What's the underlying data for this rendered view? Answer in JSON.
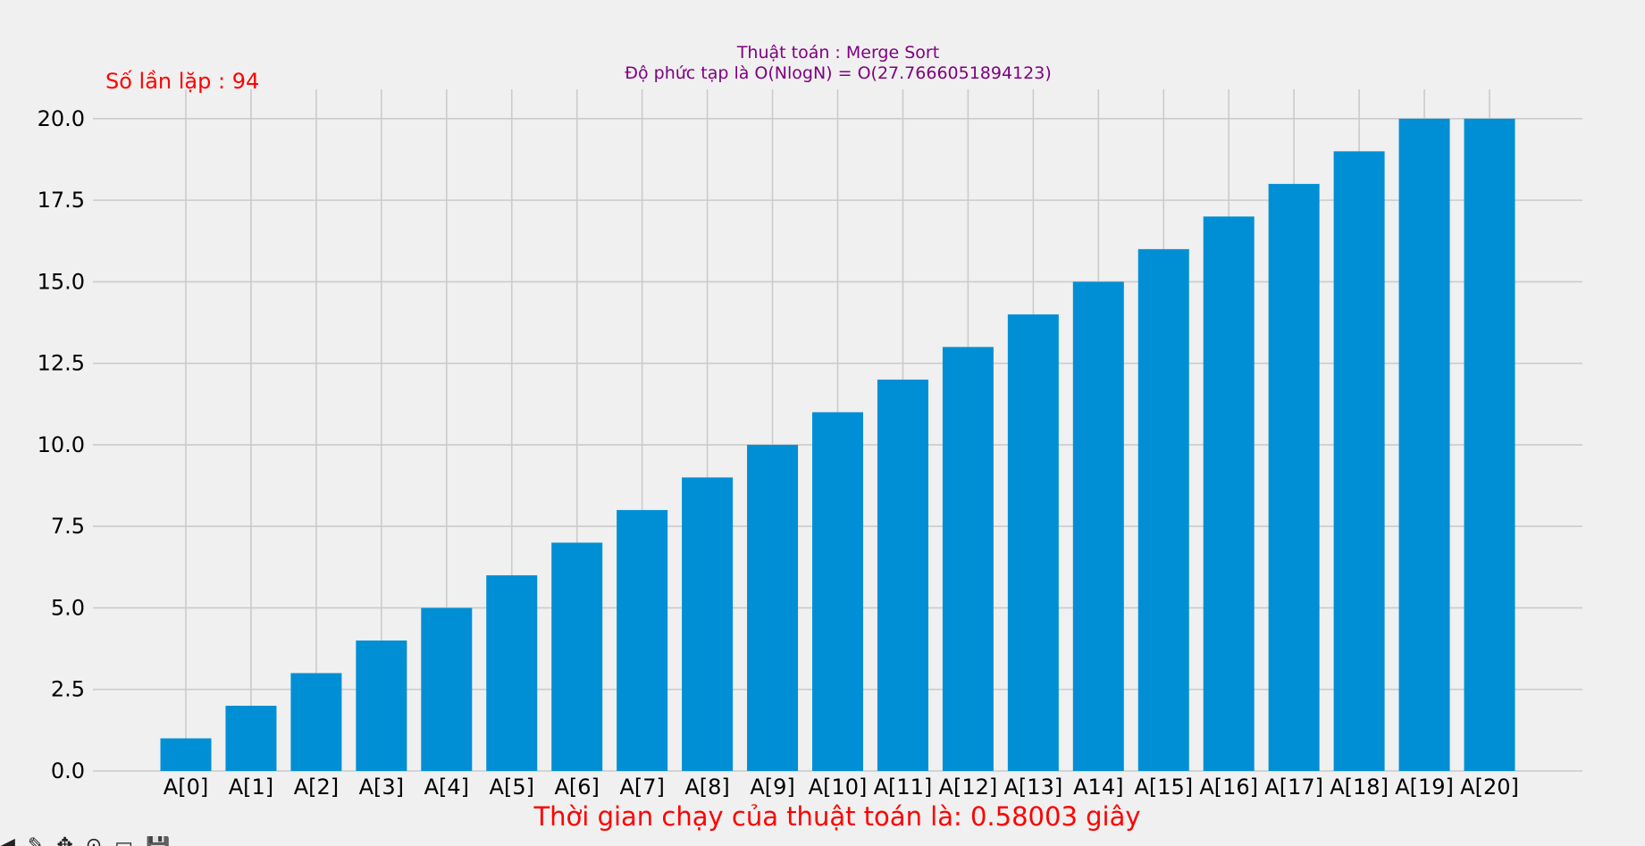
{
  "chart_data": {
    "type": "bar",
    "title_lines": [
      "Thuật toán : Merge Sort",
      "Độ phức tạp là O(NlogN) = O(27.7666051894123)"
    ],
    "annotation_top_left": "Số lần lặp : 94",
    "annotation_bottom": "Thời gian chạy của thuật toán là: 0.58003 giây",
    "categories": [
      "A[0]",
      "A[1]",
      "A[2]",
      "A[3]",
      "A[4]",
      "A[5]",
      "A[6]",
      "A[7]",
      "A[8]",
      "A[9]",
      "A[10]",
      "A[11]",
      "A[12]",
      "A[13]",
      "A14]",
      "A[15]",
      "A[16]",
      "A[17]",
      "A[18]",
      "A[19]",
      "A[20]"
    ],
    "values": [
      1,
      2,
      3,
      4,
      5,
      6,
      7,
      8,
      9,
      10,
      11,
      12,
      13,
      14,
      15,
      16,
      17,
      18,
      19,
      20,
      20
    ],
    "ylim": [
      0,
      20.9
    ],
    "yticks": [
      0,
      2.5,
      5,
      7.5,
      10,
      12.5,
      15,
      17.5,
      20
    ],
    "ytick_labels": [
      "0.0",
      "2.5",
      "5.0",
      "7.5",
      "10.0",
      "12.5",
      "15.0",
      "17.5",
      "20.0"
    ],
    "bar_color": "#008fd5",
    "grid": true,
    "xlabel": "",
    "ylabel": ""
  },
  "toolbar": {
    "icons": [
      "home-icon",
      "back-icon",
      "forward-icon",
      "pan-icon",
      "zoom-icon",
      "configure-icon",
      "save-icon"
    ]
  }
}
